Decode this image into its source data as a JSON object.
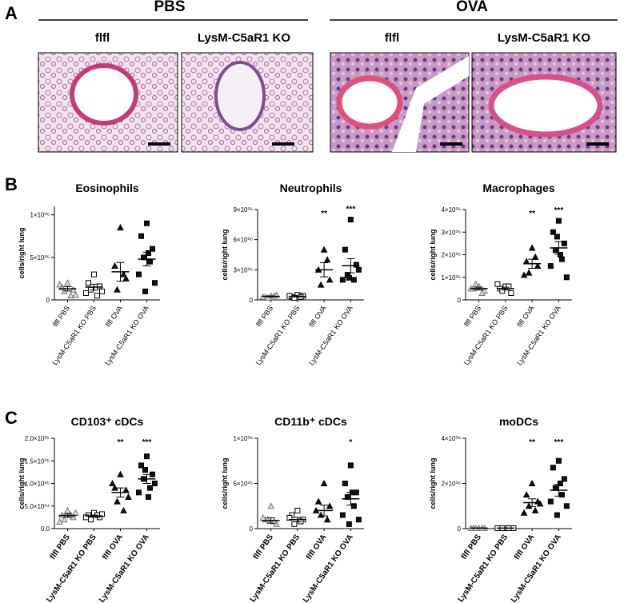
{
  "panels": [
    "A",
    "B",
    "C"
  ],
  "panel_a": {
    "groups": [
      "PBS",
      "OVA"
    ],
    "columns": [
      "flfl",
      "LysM-C5aR1 KO",
      "flfl",
      "LysM-C5aR1 KO"
    ]
  },
  "chart_data": [
    {
      "type": "dot",
      "title": "Eosinophils",
      "y_label": "cells/right lung",
      "categories": [
        "flfl PBS",
        "LysM-C5aR1 KO PBS",
        "flfl OVA",
        "LysM-C5aR1 KO OVA"
      ],
      "markers": [
        "triangle-open",
        "square-open",
        "triangle",
        "square"
      ],
      "points": [
        [
          200000,
          150000,
          120000,
          100000,
          50000,
          180000,
          60000
        ],
        [
          300000,
          200000,
          160000,
          120000,
          50000,
          80000,
          100000
        ],
        [
          850000,
          400000,
          250000,
          120000,
          300000
        ],
        [
          900000,
          750000,
          600000,
          500000,
          450000,
          300000,
          200000,
          100000,
          550000
        ]
      ],
      "means": [
        130000,
        150000,
        330000,
        480000
      ],
      "sems": [
        25000,
        35000,
        110000,
        80000
      ],
      "significance": [
        null,
        null,
        null,
        null
      ],
      "ylim": [
        0,
        1100000
      ],
      "yticks": [
        0,
        {
          "value": 500000,
          "label": "5×10⁰⁵"
        },
        {
          "value": 1000000,
          "label": "1×10⁰⁶"
        }
      ]
    },
    {
      "type": "dot",
      "title": "Neutrophils",
      "y_label": "cells/right lung",
      "categories": [
        "flfl PBS",
        "LysM-C5aR1 KO PBS",
        "flfl OVA",
        "LysM-C5aR1 KO OVA"
      ],
      "markers": [
        "triangle-open",
        "square-open",
        "triangle",
        "square"
      ],
      "points": [
        [
          400000,
          300000,
          500000,
          200000,
          400000,
          300000
        ],
        [
          500000,
          300000,
          400000,
          200000,
          300000,
          400000
        ],
        [
          5000000,
          3000000,
          2000000,
          1500000,
          4000000
        ],
        [
          8000000,
          5000000,
          3500000,
          2500000,
          2000000,
          2000000,
          3000000,
          2200000
        ]
      ],
      "means": [
        350000,
        350000,
        3000000,
        3400000
      ],
      "sems": [
        50000,
        50000,
        700000,
        700000
      ],
      "significance": [
        null,
        null,
        "**",
        "***"
      ],
      "ylim": [
        0,
        9000000
      ],
      "yticks": [
        0,
        {
          "value": 3000000,
          "label": "3×10⁰⁶"
        },
        {
          "value": 6000000,
          "label": "6×10⁰⁶"
        },
        {
          "value": 9000000,
          "label": "9×10⁰⁶"
        }
      ]
    },
    {
      "type": "dot",
      "title": "Macrophages",
      "y_label": "cells/right lung",
      "categories": [
        "flfl PBS",
        "LysM-C5aR1 KO PBS",
        "flfl OVA",
        "LysM-C5aR1 KO OVA"
      ],
      "markers": [
        "triangle-open",
        "square-open",
        "triangle",
        "square"
      ],
      "points": [
        [
          600000,
          500000,
          400000,
          700000,
          300000,
          500000
        ],
        [
          600000,
          500000,
          300000,
          400000,
          600000,
          700000
        ],
        [
          2300000,
          1700000,
          1500000,
          1200000,
          1900000,
          1100000
        ],
        [
          3500000,
          3000000,
          2500000,
          2200000,
          1800000,
          1500000,
          1000000,
          2800000,
          2000000
        ]
      ],
      "means": [
        500000,
        500000,
        1600000,
        2300000
      ],
      "sems": [
        60000,
        60000,
        200000,
        280000
      ],
      "significance": [
        null,
        null,
        "**",
        "***"
      ],
      "ylim": [
        0,
        4000000
      ],
      "yticks": [
        0,
        {
          "value": 1000000,
          "label": "1×10⁰⁶"
        },
        {
          "value": 2000000,
          "label": "2×10⁰⁶"
        },
        {
          "value": 3000000,
          "label": "3×10⁰⁶"
        },
        {
          "value": 4000000,
          "label": "4×10⁰⁶"
        }
      ]
    },
    {
      "type": "dot",
      "title": "CD103⁺ cDCs",
      "y_label": "cells/right lung",
      "categories": [
        "flfl PBS",
        "LysM-C5aR1 KO PBS",
        "flfl OVA",
        "LysM-C5aR1 KO OVA"
      ],
      "markers": [
        "triangle-open",
        "square-open",
        "triangle",
        "square"
      ],
      "points": [
        [
          40000,
          30000,
          25000,
          20000,
          30000,
          15000,
          35000
        ],
        [
          35000,
          30000,
          25000,
          20000,
          30000,
          25000,
          32000
        ],
        [
          120000,
          90000,
          85000,
          60000,
          40000,
          100000,
          70000
        ],
        [
          160000,
          140000,
          120000,
          110000,
          90000,
          80000,
          100000,
          130000,
          70000
        ]
      ],
      "means": [
        29000,
        28000,
        80000,
        110000
      ],
      "sems": [
        3500,
        2000,
        10000,
        10000
      ],
      "significance": [
        null,
        null,
        "**",
        "***"
      ],
      "ylim": [
        0,
        200000
      ],
      "yticks": [
        {
          "value": 0,
          "label": "0.0"
        },
        {
          "value": 50000,
          "label": "5.0×10⁰⁴"
        },
        {
          "value": 100000,
          "label": "1.0×10⁰⁵"
        },
        {
          "value": 150000,
          "label": "1.5×10⁰⁵"
        },
        {
          "value": 200000,
          "label": "2.0×10⁰⁵"
        }
      ]
    },
    {
      "type": "dot",
      "title": "CD11b⁺ cDCs",
      "y_label": "cells/right lung",
      "categories": [
        "flfl PBS",
        "LysM-C5aR1 KO PBS",
        "flfl OVA",
        "LysM-C5aR1 KO OVA"
      ],
      "markers": [
        "triangle-open",
        "square-open",
        "triangle",
        "square"
      ],
      "points": [
        [
          250000,
          100000,
          50000,
          100000,
          80000,
          120000
        ],
        [
          200000,
          150000,
          100000,
          50000,
          80000,
          120000
        ],
        [
          500000,
          300000,
          250000,
          150000,
          100000,
          200000
        ],
        [
          700000,
          500000,
          400000,
          350000,
          250000,
          150000,
          100000,
          50000,
          400000
        ]
      ],
      "means": [
        90000,
        100000,
        200000,
        330000
      ],
      "sems": [
        30000,
        25000,
        60000,
        70000
      ],
      "significance": [
        null,
        null,
        null,
        "*"
      ],
      "ylim": [
        0,
        1000000
      ],
      "yticks": [
        0,
        {
          "value": 500000,
          "label": "5×10⁰⁵"
        },
        {
          "value": 1000000,
          "label": "1×10⁰⁶"
        }
      ]
    },
    {
      "type": "dot",
      "title": "moDCs",
      "y_label": "cells/right lung",
      "categories": [
        "flfl PBS",
        "LysM-C5aR1 KO PBS",
        "flfl OVA",
        "LysM-C5aR1 KO OVA"
      ],
      "markers": [
        "triangle-open",
        "square-open",
        "triangle",
        "square"
      ],
      "points": [
        [
          20000,
          20000,
          20000,
          20000,
          20000,
          20000
        ],
        [
          20000,
          20000,
          20000,
          20000,
          20000,
          20000,
          20000
        ],
        [
          2000000,
          1500000,
          1200000,
          1000000,
          800000,
          700000,
          1100000
        ],
        [
          3000000,
          2700000,
          2200000,
          1800000,
          1500000,
          1200000,
          1000000,
          600000,
          2000000
        ]
      ],
      "means": [
        20000,
        20000,
        1150000,
        1700000
      ],
      "sems": [
        2000,
        2000,
        170000,
        260000
      ],
      "significance": [
        null,
        null,
        "**",
        "***"
      ],
      "ylim": [
        0,
        4000000
      ],
      "yticks": [
        0,
        {
          "value": 2000000,
          "label": "2×10⁰⁶"
        },
        {
          "value": 4000000,
          "label": "4×10⁰⁶"
        }
      ]
    }
  ]
}
